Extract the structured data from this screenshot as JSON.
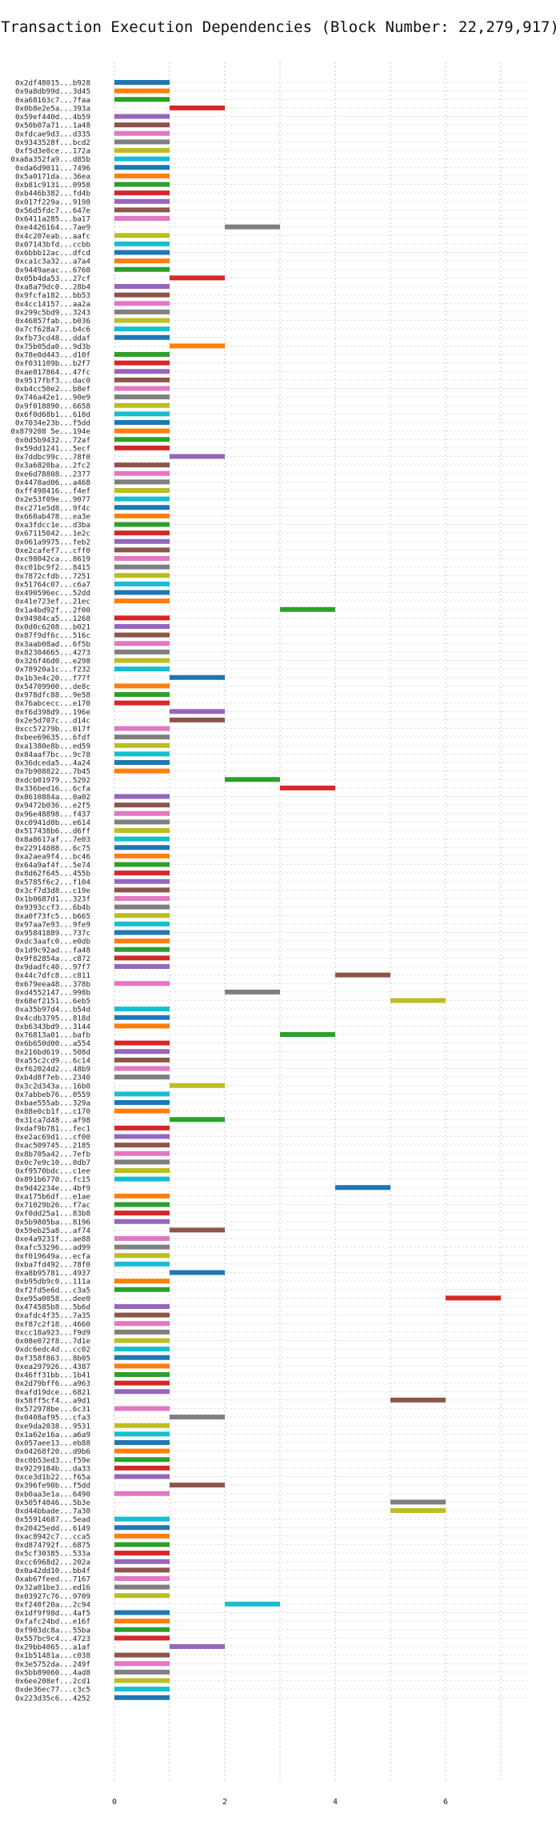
{
  "chart_data": {
    "type": "bar",
    "orientation": "horizontal",
    "title": "Transaction Execution Dependencies (Block Number: 22,279,917)",
    "xlabel": "",
    "ylabel": "",
    "xlim": [
      0,
      7.5
    ],
    "xticks": [
      0,
      2,
      4,
      6
    ],
    "grid": true,
    "legend": "none",
    "palette": [
      "#1f77b4",
      "#ff7f0e",
      "#2ca02c",
      "#d62728",
      "#9467bd",
      "#8c564b",
      "#e377c2",
      "#7f7f7f",
      "#bcbd22",
      "#17becf"
    ],
    "categories": [
      "0x2df48015...b928",
      "0x9a8db99d...3d45",
      "0xa68163c7...7faa",
      "0x0b8e2e5a...393a",
      "0x59ef440d...4b59",
      "0x50b07a71...1a48",
      "0xfdcae9d3...d335",
      "0x9343528f...bcd2",
      "0xf5d3e0ce...172a",
      "0xa8a352fa9...d85b",
      "0xda6d9011...7496",
      "0x5a0171da...36ea",
      "0xb81c9131...0958",
      "0xb446b382...fd4b",
      "0x017f229a...9198",
      "0x56d5fdc7...647e",
      "0x6411a285...ba17",
      "0xe4426164...7ae9",
      "0x4c207eab...aafc",
      "0x07143bfd...ccbb",
      "0x6bbb12ac...dfcd",
      "0xca1c3a32...a7a4",
      "0x9449aeac...6760",
      "0x05b4da53...27cf",
      "0xa8a79dc0...28b4",
      "0x9fcfa182...bb53",
      "0x4cc14157...aa2a",
      "0x299c5bd9...3243",
      "0x46857fab...b036",
      "0x7cf628a7...b4c6",
      "0xfb73cd48...ddaf",
      "0x75b05da0...9d3b",
      "0x78e0d443...d10f",
      "0xf031109b...b2f7",
      "0xae817864...47fc",
      "0x9517fbf3...dac0",
      "0xb4cc50e2...b8ef",
      "0x746a42e1...90e9",
      "0x9f018890...6658",
      "0x6f0d68b1...610d",
      "0x7034e23b...f5dd",
      "0x879208 5e...194e",
      "0x0d5b9432...72af",
      "0x59dd1241...5ecf",
      "0x7ddbc99c...78f0",
      "0x3a6820ba...2fc2",
      "0xe6d78808...2377",
      "0x4478ad06...a468",
      "0xff498416...f4ef",
      "0x2e53f09e...9077",
      "0xc271e5d8...9f4c",
      "0x660ab478...ea3e",
      "0xa3fdcc1e...d3ba",
      "0x67115042...1e2c",
      "0x061a9975...feb2",
      "0xe2cafef7...cff0",
      "0xc98042ca...8619",
      "0xc01bc9f2...8415",
      "0x7872cfdb...7251",
      "0x51764c07...c6a7",
      "0x490596ec...52dd",
      "0x41e723ef...21ec",
      "0x1a4bd92f...2f00",
      "0x94984ca5...1268",
      "0x0d0c6208...b021",
      "0x87f9df6c...516c",
      "0x3aab08ad...6f5b",
      "0x82304665...4273",
      "0x326f46d0...e298",
      "0x78920a1c...f232",
      "0x1b3e4c20...f77f",
      "0x54709900...de8c",
      "0x978dfc88...9e58",
      "0x76abcecc...e170",
      "0xf6d398d9...196e",
      "0x2e5d707c...d14c",
      "0xcc57279b...017f",
      "0xbee69635...6fdf",
      "0xa1380e8b...ed59",
      "0x84aaf7bc...9c78",
      "0x36dceda5...4a24",
      "0x7b908822...7b45",
      "0xdcb01979...5292",
      "0x336bed16...6cfa",
      "0x8610884a...0a02",
      "0x9472b036...e2f5",
      "0x96e48898...f437",
      "0xc0941d0b...e614",
      "0x517438b6...d6ff",
      "0x8a8617af...7e03",
      "0x22914888...6c75",
      "0xa2aea9f4...bc46",
      "0x64a9af4f...5e74",
      "0x8d62f645...455b",
      "0x5785f6c2...f104",
      "0x3cf7d3d8...c19e",
      "0x1b0687d1...323f",
      "0x9393ccf3...6b4b",
      "0xa0f73fc5...b665",
      "0x97aa7e93...9fe9",
      "0x95841889...737c",
      "0xdc3aafc0...e0db",
      "0x1d9c92ad...fa48",
      "0x9f82854a...c872",
      "0x9dadfc40...97f7",
      "0x44c7dfc8...c811",
      "0x679eea48...378b",
      "0xd4552147...998b",
      "0x68ef2151...6eb5",
      "0xa35b97d4...b54d",
      "0x4cdb3795...818d",
      "0xb6343bd9...3144",
      "0x76813a01...bafb",
      "0x6b650d00...a554",
      "0x216bd619...508d",
      "0xa55c2cd9...6c14",
      "0xf62024d2...48b9",
      "0xb4d8f7eb...2340",
      "0x3c2d343a...16b0",
      "0x7abbeb76...0559",
      "0xbae555ab...329a",
      "0x88e0cb1f...c170",
      "0x31ca7d48...af98",
      "0xdaf9b781...fec1",
      "0xe2ac69d1...cf00",
      "0xac509745...2185",
      "0x8b705a42...7efb",
      "0x0c7e9c10...0db7",
      "0xf9570bdc...c1ee",
      "0x891b6770...fc15",
      "0x9d42234e...4bf9",
      "0xa175b6df...e1ae",
      "0x71029b26...f7ac",
      "0xf0dd25a1...83b8",
      "0x5b9805ba...8196",
      "0x59eb25a8...af74",
      "0xe4a9231f...ae88",
      "0xafc53296...ad99",
      "0xf019649a...ecfa",
      "0xba7fd492...78f0",
      "0xa8b95781...4937",
      "0xb95db9c0...111a",
      "0xf2fd5e6d...c3a5",
      "0xe95a0058...dee0",
      "0x474585b8...5b6d",
      "0xafdc4f35...7a35",
      "0xf87c2f18...4660",
      "0xcc18a923...f9d9",
      "0x08e072f8...7d1e",
      "0xdc6edc4d...cc02",
      "0xf358f863...8b05",
      "0xea297926...4387",
      "0x46ff31bb...1b41",
      "0x2d79bff6...a963",
      "0xafd19dce...6821",
      "0x58ff5cf4...a9d1",
      "0x572978be...6c31",
      "0x0408af95...cfa3",
      "0xe9da2038...9531",
      "0x1a62e16a...a6a9",
      "0x057aee13...eb88",
      "0x04268f20...d9b6",
      "0xc0b53ed3...f59e",
      "0x9229184b...da33",
      "0xce3d1b22...f65a",
      "0x396fe90b...f5dd",
      "0xb0aa3e1a...6490",
      "0x505f4046...5b3e",
      "0xd44bbade...7a30",
      "0x55914687...5ead",
      "0x20425edd...6149",
      "0xac8942c7...cca5",
      "0xd874792f...6875",
      "0x5cf30385...533a",
      "0xcc6968d2...202a",
      "0x0a42dd10...bb4f",
      "0xab67feed...7167",
      "0x32a01be3...ed16",
      "0x03927c76...9709",
      "0xf240f20a...2c94",
      "0x1df9f98d...4af5",
      "0xfafc24bd...e16f",
      "0xf903dc8a...55ba",
      "0x557bc9c4...4723",
      "0x29bb4065...a1af",
      "0x1b51481a...c038",
      "0x3e5752da...249f",
      "0x5bb89060...4ad8",
      "0x6ee208ef...2cd1",
      "0xde36ec77...c3c5",
      "0x223d35c6...4252"
    ],
    "starts": [
      0,
      0,
      0,
      1,
      0,
      0,
      0,
      0,
      0,
      0,
      0,
      0,
      0,
      0,
      0,
      0,
      0,
      2,
      0,
      0,
      0,
      0,
      0,
      1,
      0,
      0,
      0,
      0,
      0,
      0,
      0,
      1,
      0,
      0,
      0,
      0,
      0,
      0,
      0,
      0,
      0,
      0,
      0,
      0,
      1,
      0,
      0,
      0,
      0,
      0,
      0,
      0,
      0,
      0,
      0,
      0,
      0,
      0,
      0,
      0,
      0,
      0,
      3,
      0,
      0,
      0,
      0,
      0,
      0,
      0,
      1,
      0,
      0,
      0,
      1,
      1,
      0,
      0,
      0,
      0,
      0,
      0,
      2,
      3,
      0,
      0,
      0,
      0,
      0,
      0,
      0,
      0,
      0,
      0,
      0,
      0,
      0,
      0,
      0,
      0,
      0,
      0,
      0,
      0,
      0,
      4,
      0,
      2,
      5,
      0,
      0,
      0,
      3,
      0,
      0,
      0,
      0,
      0,
      1,
      0,
      0,
      0,
      1,
      0,
      0,
      0,
      0,
      0,
      0,
      0,
      4,
      0,
      0,
      0,
      0,
      1,
      0,
      0,
      0,
      0,
      1,
      0,
      0,
      6,
      0,
      0,
      0,
      0,
      0,
      0,
      0,
      0,
      0,
      0,
      0,
      5,
      0,
      1,
      0,
      0,
      0,
      0,
      0,
      0,
      0,
      1,
      0,
      5,
      5,
      0,
      0,
      0,
      0,
      0,
      0,
      0,
      0,
      0,
      0,
      2,
      0,
      0,
      0,
      0,
      1,
      0,
      0,
      0,
      0,
      0,
      0
    ],
    "durations": [
      1,
      1,
      1,
      1,
      1,
      1,
      1,
      1,
      1,
      1,
      1,
      1,
      1,
      1,
      1,
      1,
      1,
      1,
      1,
      1,
      1,
      1,
      1,
      1,
      1,
      1,
      1,
      1,
      1,
      1,
      1,
      1,
      1,
      1,
      1,
      1,
      1,
      1,
      1,
      1,
      1,
      1,
      1,
      1,
      1,
      1,
      1,
      1,
      1,
      1,
      1,
      1,
      1,
      1,
      1,
      1,
      1,
      1,
      1,
      1,
      1,
      1,
      1,
      1,
      1,
      1,
      1,
      1,
      1,
      1,
      1,
      1,
      1,
      1,
      1,
      1,
      1,
      1,
      1,
      1,
      1,
      1,
      1,
      1,
      1,
      1,
      1,
      1,
      1,
      1,
      1,
      1,
      1,
      1,
      1,
      1,
      1,
      1,
      1,
      1,
      1,
      1,
      1,
      1,
      1,
      1,
      1,
      1,
      1,
      1,
      1,
      1,
      1,
      1,
      1,
      1,
      1,
      1,
      1,
      1,
      1,
      1,
      1,
      1,
      1,
      1,
      1,
      1,
      1,
      1,
      1,
      1,
      1,
      1,
      1,
      1,
      1,
      1,
      1,
      1,
      1,
      1,
      1,
      1,
      1,
      1,
      1,
      1,
      1,
      1,
      1,
      1,
      1,
      1,
      1,
      1,
      1,
      1,
      1,
      1,
      1,
      1,
      1,
      1,
      1,
      1,
      1,
      1,
      1,
      1,
      1,
      1,
      1,
      1,
      1,
      1,
      1,
      1,
      1,
      1,
      1,
      1,
      1,
      1,
      1,
      1,
      1,
      1,
      1,
      1,
      1
    ],
    "color_index": [
      0,
      1,
      2,
      3,
      4,
      5,
      6,
      7,
      8,
      9,
      0,
      1,
      2,
      3,
      4,
      5,
      6,
      7,
      8,
      9,
      0,
      1,
      2,
      3,
      4,
      5,
      6,
      7,
      8,
      9,
      0,
      1,
      2,
      3,
      4,
      5,
      6,
      7,
      8,
      9,
      0,
      1,
      2,
      3,
      4,
      5,
      6,
      7,
      8,
      9,
      0,
      1,
      2,
      3,
      4,
      5,
      6,
      7,
      8,
      9,
      0,
      1,
      2,
      3,
      4,
      5,
      6,
      7,
      8,
      9,
      0,
      1,
      2,
      3,
      4,
      5,
      6,
      7,
      8,
      9,
      0,
      1,
      2,
      3,
      4,
      5,
      6,
      7,
      8,
      9,
      0,
      1,
      2,
      3,
      4,
      5,
      6,
      7,
      8,
      9,
      0,
      1,
      2,
      3,
      4,
      5,
      6,
      7,
      8,
      9,
      0,
      1,
      2,
      3,
      4,
      5,
      6,
      7,
      8,
      9,
      0,
      1,
      2,
      3,
      4,
      5,
      6,
      7,
      8,
      9,
      0,
      1,
      2,
      3,
      4,
      5,
      6,
      7,
      8,
      9,
      0,
      1,
      2,
      3,
      4,
      5,
      6,
      7,
      8,
      9,
      0,
      1,
      2,
      3,
      4,
      5,
      6,
      7,
      8,
      9,
      0,
      1,
      2,
      3,
      4,
      5,
      6,
      7,
      8,
      9,
      0,
      1,
      2,
      3,
      4,
      5,
      6,
      7,
      8,
      9,
      0,
      1,
      2,
      3,
      4,
      5,
      6,
      7,
      8,
      9,
      0
    ]
  }
}
